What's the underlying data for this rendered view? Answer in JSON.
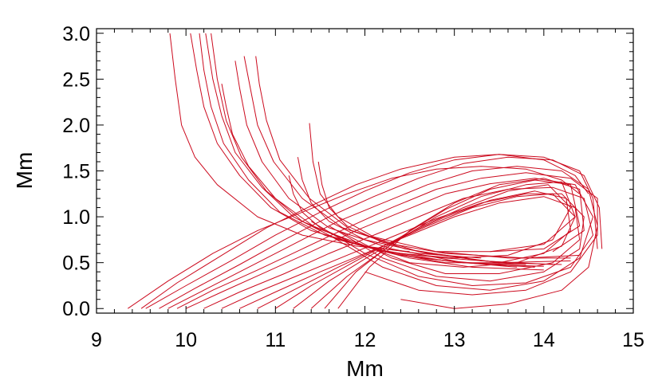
{
  "chart_data": {
    "type": "line",
    "xlabel": "Mm",
    "ylabel": "Mm",
    "xlim": [
      9,
      15
    ],
    "ylim": [
      -0.05,
      3.05
    ],
    "xticks": [
      "9",
      "10",
      "11",
      "12",
      "13",
      "14",
      "15"
    ],
    "yticks": [
      "0.0",
      "0.5",
      "1.0",
      "1.5",
      "2.0",
      "2.5",
      "3.0"
    ],
    "grid": false,
    "legend": "none",
    "line_color": "#cc0a1e",
    "series": [
      {
        "x": [
          9.82,
          9.88,
          9.95,
          10.1,
          10.35,
          10.8,
          11.3,
          11.9,
          12.5
        ],
        "y": [
          3.0,
          2.5,
          2.0,
          1.65,
          1.35,
          1.0,
          0.8,
          0.68,
          0.62
        ]
      },
      {
        "x": [
          10.05,
          10.12,
          10.2,
          10.35,
          10.6,
          10.95,
          11.4,
          12.0,
          12.6,
          13.3
        ],
        "y": [
          3.0,
          2.6,
          2.2,
          1.8,
          1.45,
          1.1,
          0.85,
          0.68,
          0.6,
          0.55
        ]
      },
      {
        "x": [
          10.15,
          10.2,
          10.28,
          10.42,
          10.7,
          11.05,
          11.55,
          12.2,
          12.9,
          13.6
        ],
        "y": [
          3.0,
          2.6,
          2.2,
          1.8,
          1.4,
          1.05,
          0.8,
          0.62,
          0.55,
          0.5
        ]
      },
      {
        "x": [
          10.22,
          10.3,
          10.4,
          10.55,
          10.85,
          11.2,
          11.7,
          12.4,
          13.1,
          13.8
        ],
        "y": [
          3.0,
          2.5,
          2.1,
          1.7,
          1.32,
          1.0,
          0.75,
          0.58,
          0.5,
          0.48
        ]
      },
      {
        "x": [
          10.28,
          10.35,
          10.45,
          10.62,
          10.9,
          11.3,
          11.9,
          12.6,
          13.4,
          14.0
        ],
        "y": [
          3.0,
          2.5,
          2.05,
          1.65,
          1.28,
          0.95,
          0.7,
          0.55,
          0.48,
          0.46
        ]
      },
      {
        "x": [
          10.4,
          10.45,
          10.52,
          10.7,
          11.0,
          11.45,
          12.1,
          12.9,
          13.7
        ],
        "y": [
          2.45,
          2.2,
          1.9,
          1.55,
          1.2,
          0.88,
          0.65,
          0.52,
          0.45
        ]
      },
      {
        "x": [
          10.55,
          10.6,
          10.68,
          10.85,
          11.15,
          11.6,
          12.3,
          13.1,
          13.9
        ],
        "y": [
          2.7,
          2.4,
          2.0,
          1.6,
          1.2,
          0.88,
          0.65,
          0.5,
          0.45
        ]
      },
      {
        "x": [
          10.65,
          10.72,
          10.8,
          10.98,
          11.3,
          11.75,
          12.45,
          13.3,
          14.1
        ],
        "y": [
          2.75,
          2.4,
          2.0,
          1.6,
          1.2,
          0.88,
          0.65,
          0.52,
          0.48
        ]
      },
      {
        "x": [
          10.78,
          10.82,
          10.9,
          11.05,
          11.38,
          11.85,
          12.6,
          13.5,
          14.3
        ],
        "y": [
          2.75,
          2.45,
          2.05,
          1.62,
          1.2,
          0.85,
          0.62,
          0.5,
          0.52
        ]
      },
      {
        "x": [
          11.15,
          11.2,
          11.3,
          11.5,
          11.9,
          12.5,
          13.2,
          14.0
        ],
        "y": [
          1.45,
          1.25,
          1.05,
          0.88,
          0.7,
          0.55,
          0.45,
          0.42
        ]
      },
      {
        "x": [
          11.25,
          11.3,
          11.4,
          11.6,
          12.0,
          12.7,
          13.5,
          14.2
        ],
        "y": [
          1.65,
          1.4,
          1.15,
          0.95,
          0.75,
          0.6,
          0.5,
          0.48
        ]
      },
      {
        "x": [
          11.38,
          11.42,
          11.5,
          11.7,
          12.1,
          12.8,
          13.6,
          14.3
        ],
        "y": [
          2.02,
          1.6,
          1.25,
          1.0,
          0.78,
          0.62,
          0.55,
          0.55
        ]
      },
      {
        "x": [
          11.48,
          11.52,
          11.6,
          11.8,
          12.2,
          12.9,
          13.8,
          14.4
        ],
        "y": [
          1.6,
          1.35,
          1.1,
          0.9,
          0.72,
          0.6,
          0.55,
          0.58
        ]
      },
      {
        "x": [
          9.35,
          9.8,
          10.3,
          10.8,
          11.3,
          11.8,
          12.3,
          12.8,
          13.3,
          13.8,
          14.2,
          14.4
        ],
        "y": [
          0.0,
          0.3,
          0.6,
          0.85,
          1.05,
          1.25,
          1.42,
          1.52,
          1.55,
          1.52,
          1.4,
          1.25
        ]
      },
      {
        "x": [
          9.5,
          9.9,
          10.4,
          10.9,
          11.4,
          11.9,
          12.4,
          13.0,
          13.5,
          14.0,
          14.35,
          14.5
        ],
        "y": [
          0.0,
          0.28,
          0.58,
          0.88,
          1.12,
          1.35,
          1.52,
          1.65,
          1.68,
          1.62,
          1.45,
          1.25
        ]
      },
      {
        "x": [
          9.55,
          10.0,
          10.5,
          11.0,
          11.5,
          12.0,
          12.5,
          13.0,
          13.5,
          14.0,
          14.4,
          14.55,
          14.6
        ],
        "y": [
          0.0,
          0.25,
          0.52,
          0.8,
          1.05,
          1.28,
          1.48,
          1.62,
          1.68,
          1.65,
          1.5,
          1.2,
          0.65
        ]
      },
      {
        "x": [
          9.7,
          10.1,
          10.6,
          11.1,
          11.6,
          12.1,
          12.6,
          13.1,
          13.6,
          14.1,
          14.45,
          14.62,
          14.65
        ],
        "y": [
          0.0,
          0.22,
          0.48,
          0.75,
          1.0,
          1.22,
          1.42,
          1.58,
          1.65,
          1.62,
          1.45,
          1.1,
          0.65
        ]
      },
      {
        "x": [
          9.8,
          10.2,
          10.7,
          11.2,
          11.7,
          12.2,
          12.7,
          13.2,
          13.7,
          14.2,
          14.5,
          14.6,
          14.5,
          14.2,
          13.6,
          13.0,
          12.4
        ],
        "y": [
          0.0,
          0.2,
          0.45,
          0.7,
          0.95,
          1.15,
          1.35,
          1.5,
          1.55,
          1.5,
          1.3,
          0.9,
          0.45,
          0.2,
          0.05,
          0.0,
          0.1
        ]
      },
      {
        "x": [
          9.9,
          10.3,
          10.8,
          11.3,
          11.8,
          12.3,
          12.8,
          13.3,
          13.8,
          14.3,
          14.6,
          14.6,
          14.3,
          13.8,
          13.2,
          12.6,
          12.0
        ],
        "y": [
          0.0,
          0.2,
          0.42,
          0.65,
          0.88,
          1.1,
          1.3,
          1.42,
          1.48,
          1.42,
          1.2,
          0.8,
          0.4,
          0.2,
          0.15,
          0.2,
          0.4
        ]
      },
      {
        "x": [
          10.0,
          10.4,
          10.9,
          11.4,
          11.9,
          12.4,
          12.9,
          13.4,
          13.9,
          14.35,
          14.55,
          14.4,
          14.0,
          13.4,
          12.8,
          12.2,
          11.6
        ],
        "y": [
          0.0,
          0.18,
          0.4,
          0.62,
          0.85,
          1.05,
          1.25,
          1.36,
          1.42,
          1.35,
          1.0,
          0.55,
          0.3,
          0.2,
          0.25,
          0.45,
          0.8
        ]
      },
      {
        "x": [
          10.2,
          10.6,
          11.1,
          11.6,
          12.1,
          12.6,
          13.1,
          13.6,
          14.1,
          14.45,
          14.55,
          14.3,
          13.8,
          13.2,
          12.6,
          12.0,
          11.4
        ],
        "y": [
          0.0,
          0.18,
          0.38,
          0.6,
          0.8,
          1.0,
          1.2,
          1.3,
          1.32,
          1.2,
          0.8,
          0.45,
          0.28,
          0.25,
          0.35,
          0.6,
          0.95
        ]
      },
      {
        "x": [
          10.4,
          10.8,
          11.3,
          11.8,
          12.3,
          12.8,
          13.3,
          13.8,
          14.2,
          14.45,
          14.4,
          14.0,
          13.4,
          12.8,
          12.2,
          11.6
        ],
        "y": [
          0.0,
          0.18,
          0.38,
          0.58,
          0.78,
          0.98,
          1.15,
          1.25,
          1.25,
          1.0,
          0.65,
          0.4,
          0.3,
          0.35,
          0.55,
          0.9
        ]
      },
      {
        "x": [
          10.6,
          11.0,
          11.5,
          12.0,
          12.5,
          13.0,
          13.5,
          14.0,
          14.35,
          14.4,
          14.1,
          13.5,
          12.9,
          12.3,
          11.7
        ],
        "y": [
          0.0,
          0.18,
          0.4,
          0.6,
          0.8,
          1.0,
          1.15,
          1.22,
          1.1,
          0.75,
          0.5,
          0.38,
          0.38,
          0.55,
          0.85
        ]
      },
      {
        "x": [
          10.8,
          11.2,
          11.7,
          12.2,
          12.7,
          13.2,
          13.7,
          14.1,
          14.35,
          14.2,
          13.7,
          13.1,
          12.5,
          11.9
        ],
        "y": [
          0.0,
          0.2,
          0.45,
          0.68,
          0.9,
          1.1,
          1.22,
          1.25,
          1.0,
          0.68,
          0.5,
          0.45,
          0.5,
          0.72
        ]
      },
      {
        "x": [
          11.0,
          11.4,
          11.9,
          12.4,
          12.9,
          13.4,
          13.9,
          14.25,
          14.3,
          14.0,
          13.5,
          12.9,
          12.3
        ],
        "y": [
          0.0,
          0.25,
          0.52,
          0.78,
          1.0,
          1.18,
          1.28,
          1.2,
          0.85,
          0.6,
          0.5,
          0.5,
          0.6
        ]
      },
      {
        "x": [
          11.2,
          11.6,
          12.1,
          12.6,
          13.1,
          13.6,
          14.05,
          14.3,
          14.1,
          13.6,
          13.0,
          12.4
        ],
        "y": [
          0.0,
          0.3,
          0.6,
          0.88,
          1.1,
          1.28,
          1.35,
          1.1,
          0.75,
          0.58,
          0.55,
          0.6
        ]
      },
      {
        "x": [
          11.4,
          11.8,
          12.3,
          12.8,
          13.3,
          13.8,
          14.2,
          14.35,
          14.0,
          13.4,
          12.8
        ],
        "y": [
          0.0,
          0.35,
          0.7,
          1.0,
          1.22,
          1.35,
          1.38,
          1.0,
          0.7,
          0.62,
          0.62
        ]
      },
      {
        "x": [
          11.55,
          11.9,
          12.4,
          12.9,
          13.4,
          13.9,
          14.3,
          14.4,
          14.0,
          13.4
        ],
        "y": [
          0.0,
          0.4,
          0.78,
          1.08,
          1.3,
          1.4,
          1.35,
          0.9,
          0.65,
          0.62
        ]
      },
      {
        "x": [
          11.7,
          12.05,
          12.5,
          13.0,
          13.5,
          14.0,
          14.4,
          14.45,
          14.1
        ],
        "y": [
          0.0,
          0.45,
          0.85,
          1.15,
          1.35,
          1.42,
          1.3,
          0.85,
          0.62
        ]
      }
    ]
  }
}
